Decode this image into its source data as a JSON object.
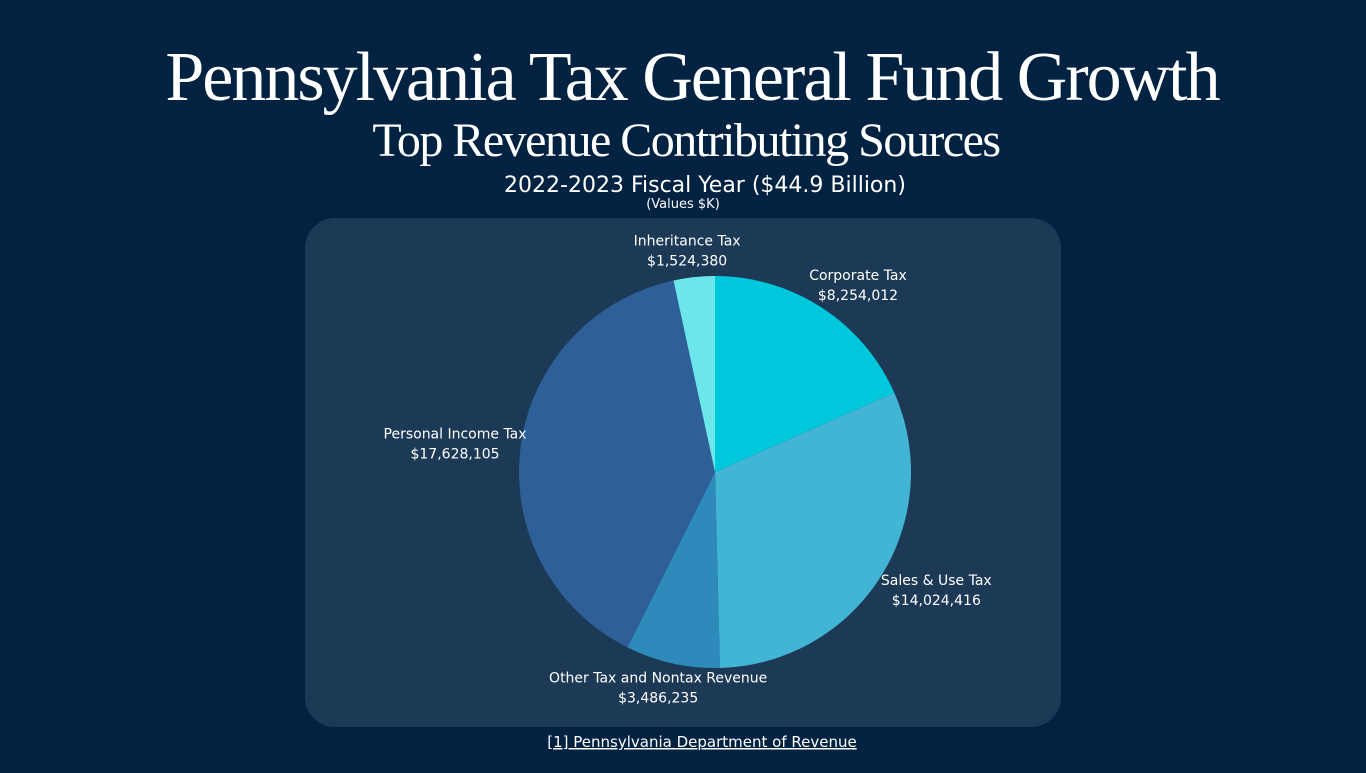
{
  "chart_data": {
    "type": "pie",
    "title": "Pennsylvania Tax General Fund Growth",
    "subtitle": "Top Revenue Contributing Sources",
    "period": "2022-2023 Fiscal Year ($44.9 Billion)",
    "units_note": "(Values $K)",
    "source": "[1] Pennsylvania Department of Revenue",
    "categories": [
      "Corporate Tax",
      "Sales & Use Tax",
      "Other Tax and Nontax Revenue",
      "Personal Income Tax",
      "Inheritance Tax"
    ],
    "values": [
      8254012,
      14024416,
      3486235,
      17628105,
      1524380
    ],
    "value_labels": [
      "$8,254,012",
      "$14,024,416",
      "$3,486,235",
      "$17,628,105",
      "$1,524,380"
    ],
    "colors": [
      "#00c8dc",
      "#42b4d4",
      "#2e8aba",
      "#2f5f98",
      "#6ce6ea"
    ]
  }
}
